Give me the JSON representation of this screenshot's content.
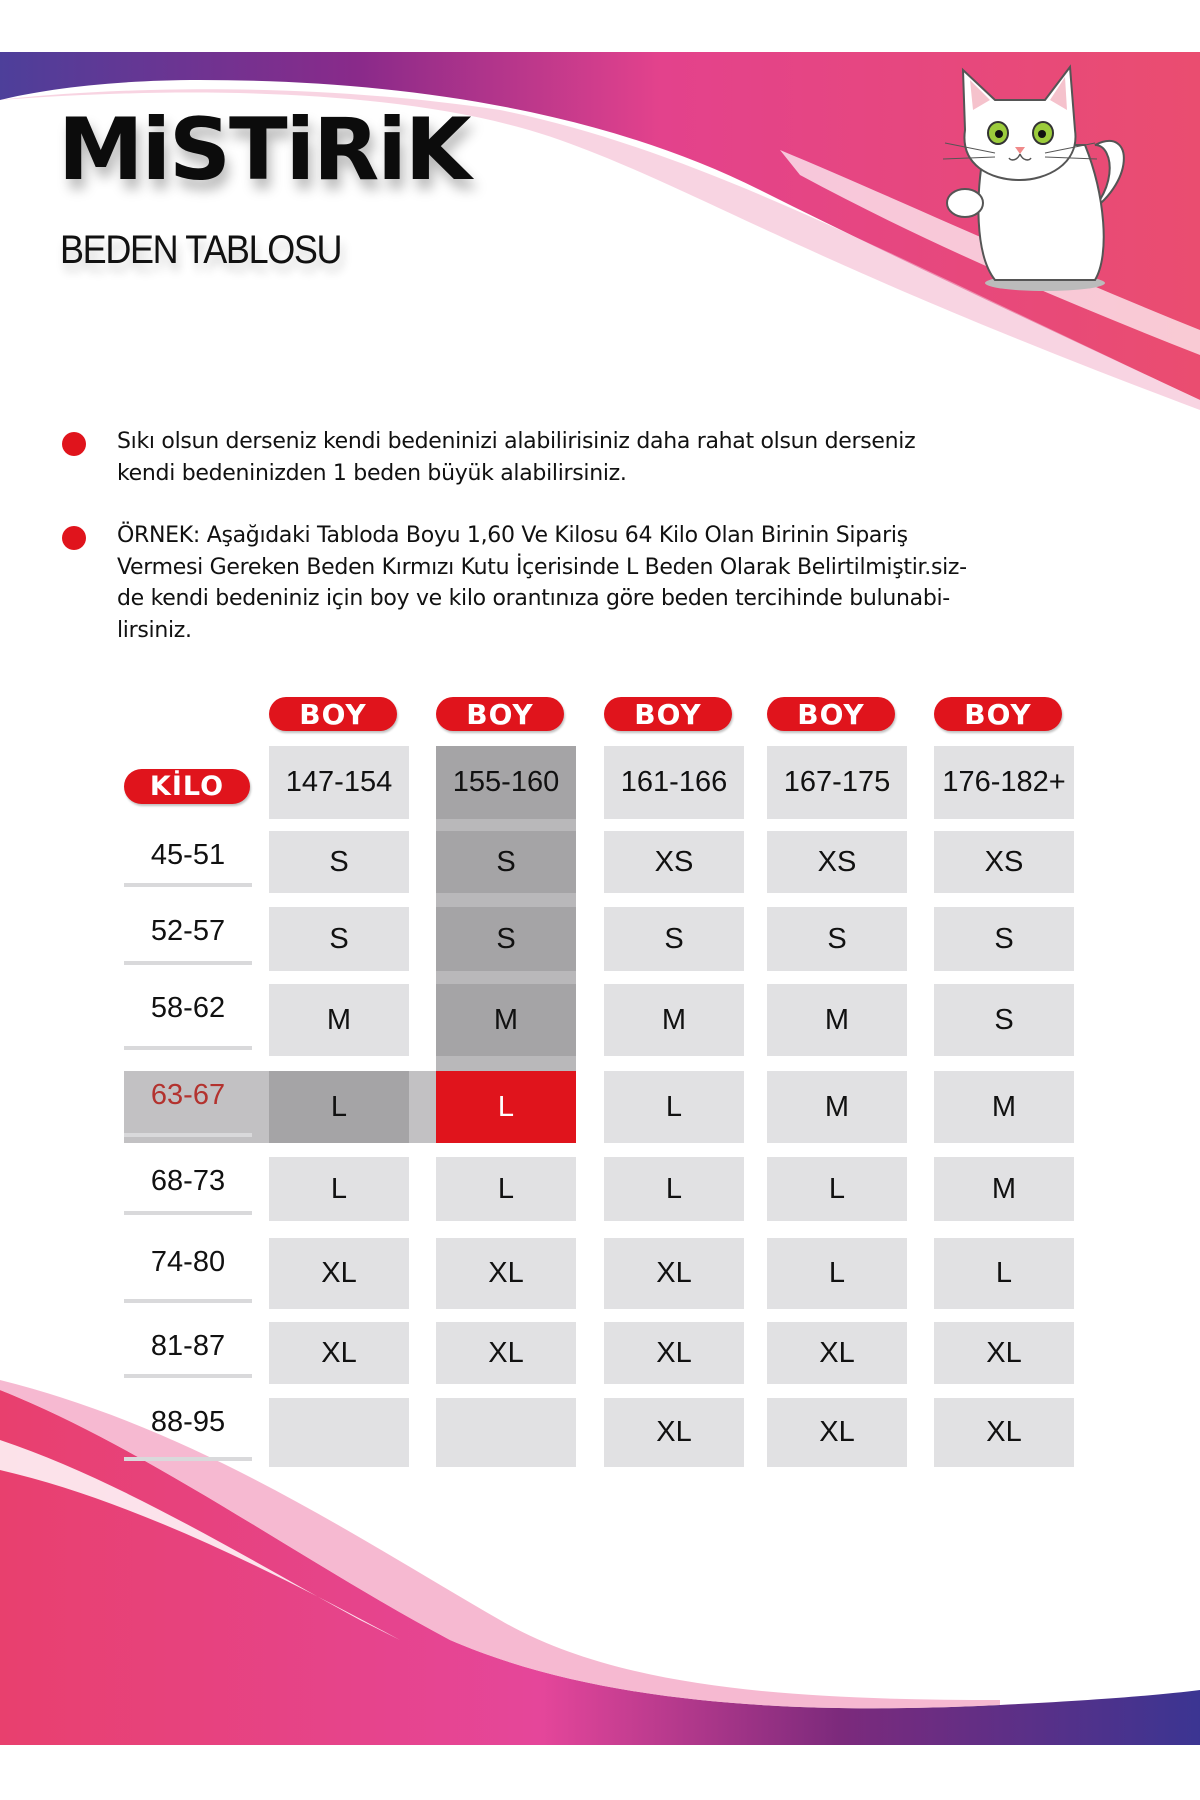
{
  "brand": "MiSTiRiK",
  "subtitle": "BEDEN TABLOSU",
  "notes": [
    {
      "lines": [
        "Sıkı olsun derseniz kendi bedeninizi alabilirisiniz daha rahat olsun derseniz",
        "kendi bedeninizden 1 beden büyük alabilirsiniz."
      ]
    },
    {
      "lines": [
        "ÖRNEK: Aşağıdaki Tabloda Boyu 1,60 Ve Kilosu 64 Kilo Olan Birinin Sipariş",
        "Vermesi Gereken Beden Kırmızı Kutu İçerisinde L Beden Olarak Belirtilmiştir.siz-",
        "de kendi bedeniniz için boy ve kilo orantınıza göre beden tercihinde bulunabi-",
        "lirsiniz."
      ]
    }
  ],
  "table": {
    "kilo_label": "KİLO",
    "boy_label": "BOY",
    "heights": [
      "147-154",
      "155-160",
      "161-166",
      "167-175",
      "176-182+"
    ],
    "rows": [
      {
        "weight": "45-51",
        "sizes": [
          "S",
          "S",
          "XS",
          "XS",
          "XS"
        ]
      },
      {
        "weight": "52-57",
        "sizes": [
          "S",
          "S",
          "S",
          "S",
          "S"
        ]
      },
      {
        "weight": "58-62",
        "sizes": [
          "M",
          "M",
          "M",
          "M",
          "S"
        ]
      },
      {
        "weight": "63-67",
        "sizes": [
          "L",
          "L",
          "L",
          "M",
          "M"
        ]
      },
      {
        "weight": "68-73",
        "sizes": [
          "L",
          "L",
          "L",
          "L",
          "M"
        ]
      },
      {
        "weight": "74-80",
        "sizes": [
          "XL",
          "XL",
          "XL",
          "L",
          "L"
        ]
      },
      {
        "weight": "81-87",
        "sizes": [
          "XL",
          "XL",
          "XL",
          "XL",
          "XL"
        ]
      },
      {
        "weight": "88-95",
        "sizes": [
          "",
          "",
          "XL",
          "XL",
          "XL"
        ]
      }
    ],
    "highlight": {
      "height_column": "155-160",
      "weight_row": "63-67",
      "size": "L"
    }
  },
  "colors": {
    "accent_red": "#e0141c",
    "pink": "#e8407a",
    "purple": "#4a2f8f",
    "cell": "#e1e1e3",
    "highlight_gray": "#a5a4a6"
  }
}
